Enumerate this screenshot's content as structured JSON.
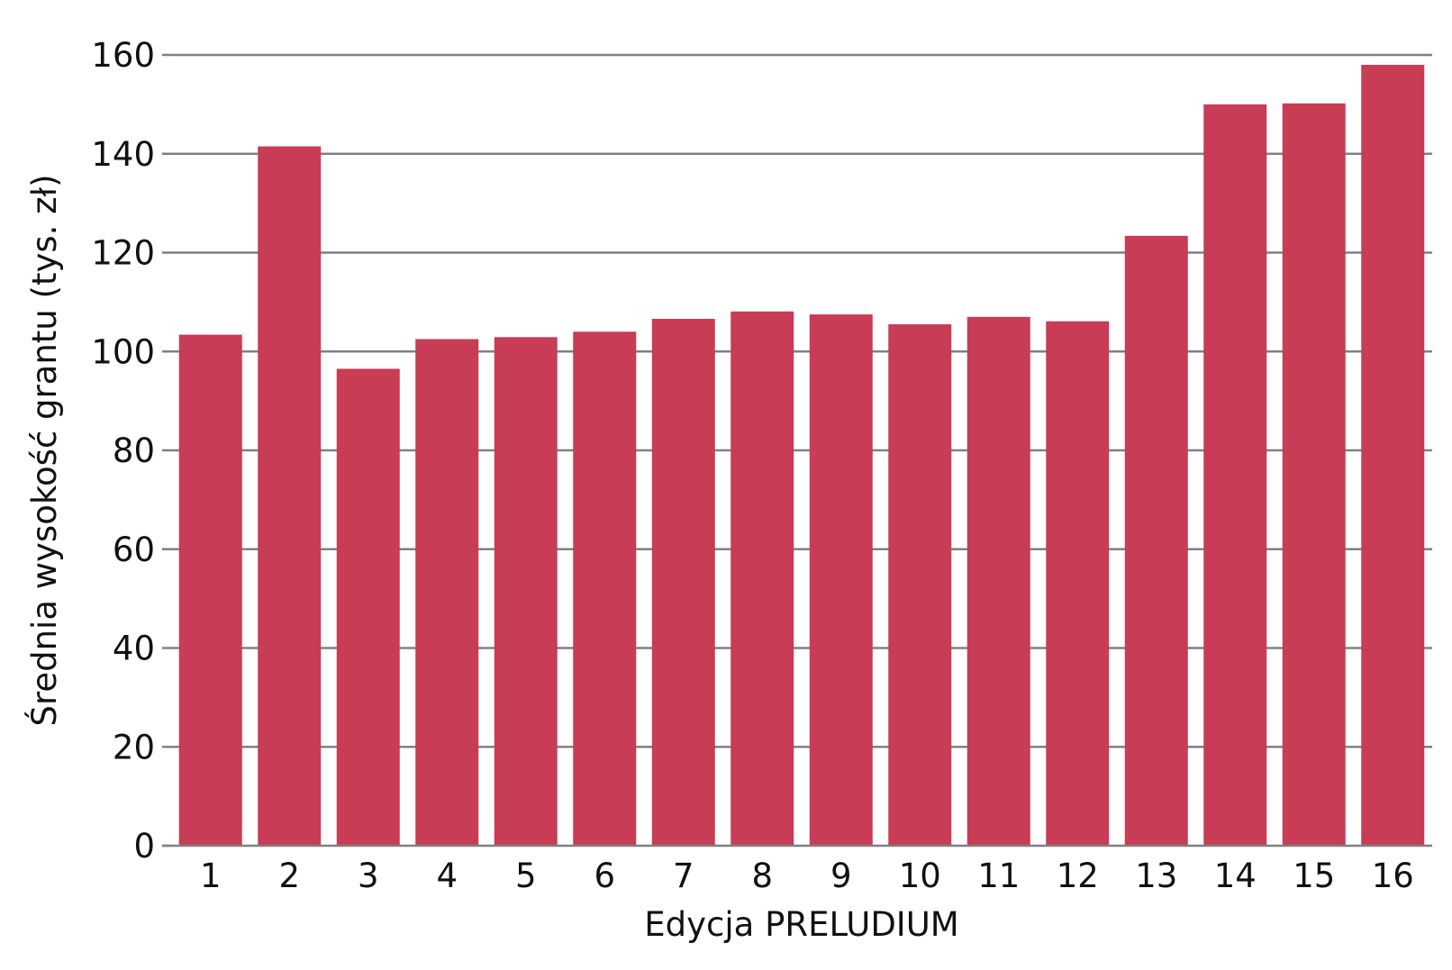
{
  "chart_data": {
    "type": "bar",
    "title": "",
    "xlabel": "Edycja PRELUDIUM",
    "ylabel": "Średnia wysokość grantu (tys. zł)",
    "categories": [
      "1",
      "2",
      "3",
      "4",
      "5",
      "6",
      "7",
      "8",
      "9",
      "10",
      "11",
      "12",
      "13",
      "14",
      "15",
      "16"
    ],
    "values": [
      103.4,
      141.5,
      96.5,
      102.5,
      102.9,
      104.0,
      106.6,
      108.1,
      107.5,
      105.5,
      107.0,
      106.1,
      123.4,
      150.0,
      150.2,
      158.0
    ],
    "ylim": [
      0,
      160
    ],
    "yticks": [
      0,
      20,
      40,
      60,
      80,
      100,
      120,
      140,
      160
    ],
    "grid": true,
    "bar_color": "#c83c55",
    "grid_color": "#808080"
  }
}
